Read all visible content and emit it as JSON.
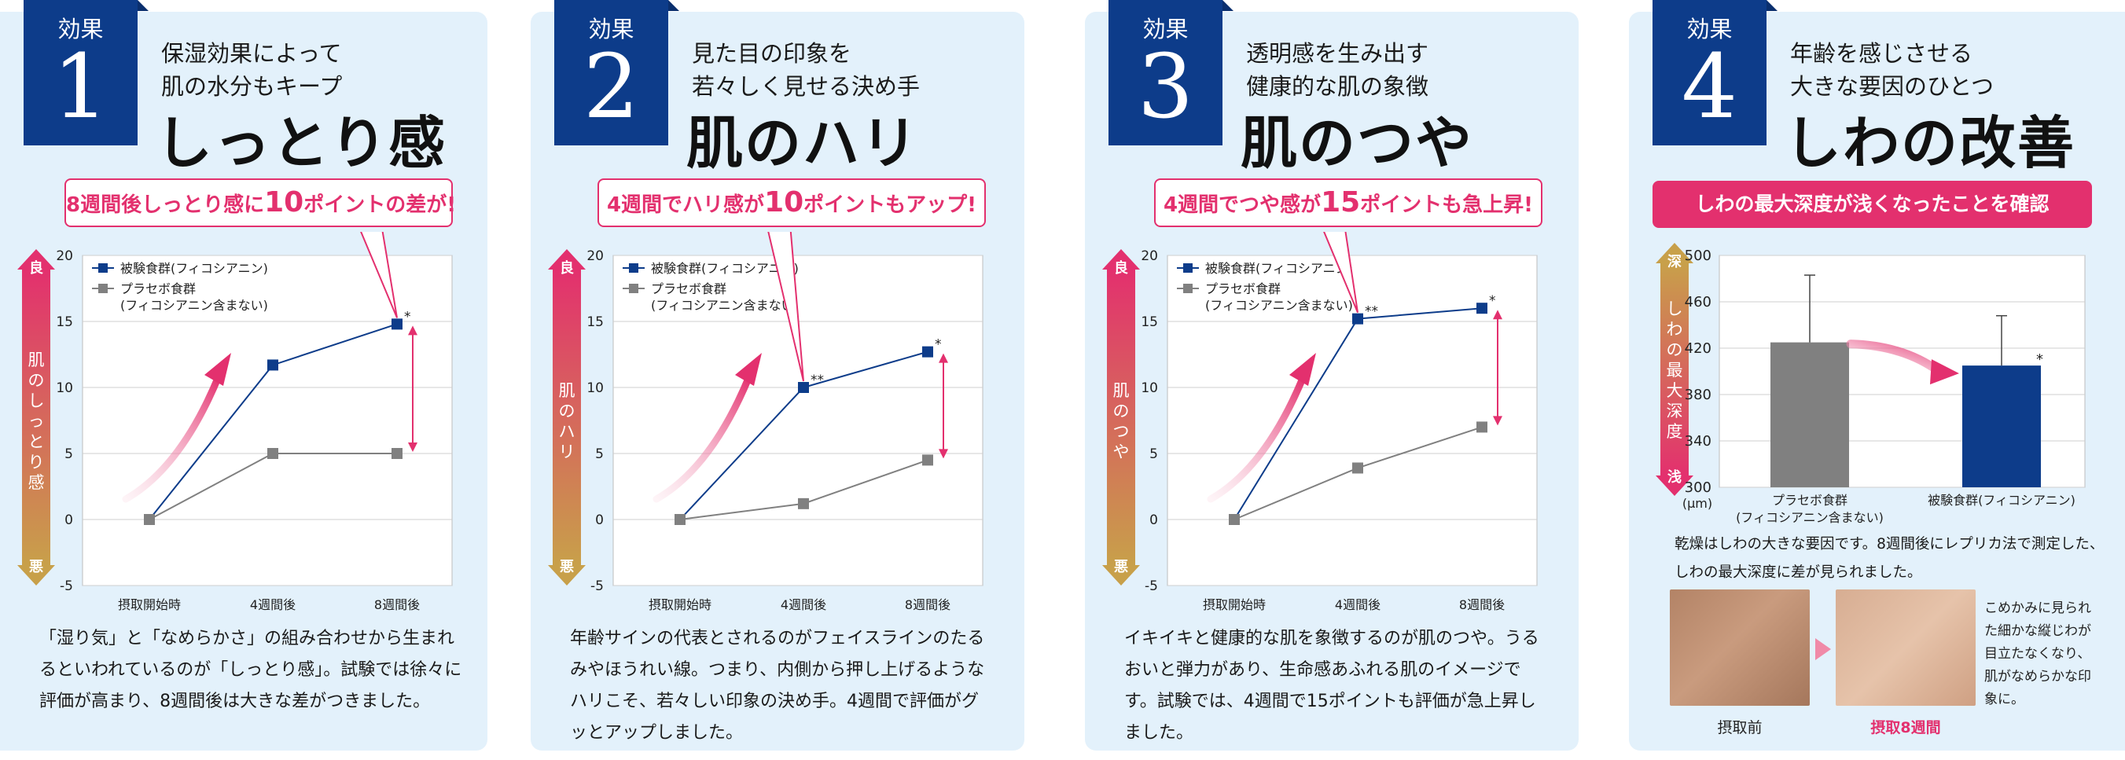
{
  "panels": [
    {
      "badge_label": "効果",
      "badge_num": "1",
      "subtitle_lines": [
        "保湿効果によって",
        "肌の水分もキープ"
      ],
      "title": "しっとり感",
      "callout": {
        "pre": "8週間後しっとり感に",
        "num": "10",
        "post": "ポイントの差が!"
      },
      "ylabel_top": "良",
      "ylabel": "肌のしっとり感",
      "ylabel_bottom": "悪",
      "description": "「湿り気」と「なめらかさ」の組み合わせから生まれるといわれているのが「しっとり感」。試験では徐々に評価が高まり、8週間後は大きな差がつきました。"
    },
    {
      "badge_label": "効果",
      "badge_num": "2",
      "subtitle_lines": [
        "見た目の印象を",
        "若々しく見せる決め手"
      ],
      "title": "肌のハリ",
      "callout": {
        "pre": "4週間でハリ感が",
        "num": "10",
        "post": "ポイントもアップ!"
      },
      "ylabel_top": "良",
      "ylabel": "肌のハリ",
      "ylabel_bottom": "悪",
      "description": "年齢サインの代表とされるのがフェイスラインのたるみやほうれい線。つまり、内側から押し上げるようなハリこそ、若々しい印象の決め手。4週間で評価がグッとアップしました。"
    },
    {
      "badge_label": "効果",
      "badge_num": "3",
      "subtitle_lines": [
        "透明感を生み出す",
        "健康的な肌の象徴"
      ],
      "title": "肌のつや",
      "callout": {
        "pre": "4週間でつや感が",
        "num": "15",
        "post": "ポイントも急上昇!"
      },
      "ylabel_top": "良",
      "ylabel": "肌のつや",
      "ylabel_bottom": "悪",
      "description": "イキイキと健康的な肌を象徴するのが肌のつや。うるおいと弾力があり、生命感あふれる肌のイメージです。試験では、4週間で15ポイントも評価が急上昇しました。"
    },
    {
      "badge_label": "効果",
      "badge_num": "4",
      "subtitle_lines": [
        "年齢を感じさせる",
        "大きな要因のひとつ"
      ],
      "title": "しわの改善",
      "callout": {
        "pre": "しわの最大深度が浅くなったことを確認",
        "num": "",
        "post": ""
      },
      "ylabel_top": "深",
      "ylabel": "しわの最大深度",
      "ylabel_bottom": "浅",
      "unit": "(μm)",
      "description": "乾燥はしわの大きな要因です。8週間後にレプリカ法で測定した、しわの最大深度に差が見られました。",
      "photo_before": "摂取前",
      "photo_after": "摂取8週間",
      "photo_note": "こめかみに見られた細かな縦じわが目立たなくなり、肌がなめらかな印象に。"
    }
  ],
  "chart_data": [
    {
      "type": "line",
      "categories": [
        "摂取開始時",
        "4週間後",
        "8週間後"
      ],
      "ylim": [
        -5,
        20
      ],
      "yticks": [
        -5,
        0,
        5,
        10,
        15,
        20
      ],
      "series": [
        {
          "name": "被験食群(フィコシアニン)",
          "values": [
            0,
            11.7,
            14.8
          ],
          "color": "#0d3c8a",
          "marks": [
            "",
            "",
            "*"
          ]
        },
        {
          "name": "プラセボ食群\n(フィコシアニン含まない)",
          "values": [
            0,
            5,
            5
          ],
          "color": "#808080",
          "marks": [
            "",
            "",
            ""
          ]
        }
      ],
      "ylabel": "肌のしっとり感",
      "grid": true
    },
    {
      "type": "line",
      "categories": [
        "摂取開始時",
        "4週間後",
        "8週間後"
      ],
      "ylim": [
        -5,
        20
      ],
      "yticks": [
        -5,
        0,
        5,
        10,
        15,
        20
      ],
      "series": [
        {
          "name": "被験食群(フィコシアニン)",
          "values": [
            0,
            10,
            12.7
          ],
          "color": "#0d3c8a",
          "marks": [
            "",
            "**",
            "*"
          ]
        },
        {
          "name": "プラセボ食群\n(フィコシアニン含まない)",
          "values": [
            0,
            1.2,
            4.5
          ],
          "color": "#808080",
          "marks": [
            "",
            "",
            ""
          ]
        }
      ],
      "ylabel": "肌のハリ",
      "grid": true
    },
    {
      "type": "line",
      "categories": [
        "摂取開始時",
        "4週間後",
        "8週間後"
      ],
      "ylim": [
        -5,
        20
      ],
      "yticks": [
        -5,
        0,
        5,
        10,
        15,
        20
      ],
      "series": [
        {
          "name": "被験食群(フィコシアニン)",
          "values": [
            0,
            15.2,
            16
          ],
          "color": "#0d3c8a",
          "marks": [
            "",
            "**",
            "*"
          ]
        },
        {
          "name": "プラセボ食群\n(フィコシアニン含まない)",
          "values": [
            0,
            3.9,
            7
          ],
          "color": "#808080",
          "marks": [
            "",
            "",
            ""
          ]
        }
      ],
      "ylabel": "肌のつや",
      "grid": true
    },
    {
      "type": "bar",
      "categories": [
        "プラセボ食群\n(フィコシアニン含まない)",
        "被験食群(フィコシアニン)"
      ],
      "values": [
        425,
        405
      ],
      "errors": [
        58,
        43
      ],
      "colors": [
        "#808080",
        "#0d3c8a"
      ],
      "marks": [
        "",
        "*"
      ],
      "ylim": [
        300,
        500
      ],
      "yticks": [
        300,
        340,
        380,
        420,
        460,
        500
      ],
      "ylabel": "しわの最大深度",
      "unit": "(μm)",
      "grid": true
    }
  ],
  "colors": {
    "badge": "#0d3c8a",
    "accent": "#e3306e",
    "panel_bg": "#e3f1fb",
    "test_group": "#0d3c8a",
    "placebo": "#808080"
  }
}
